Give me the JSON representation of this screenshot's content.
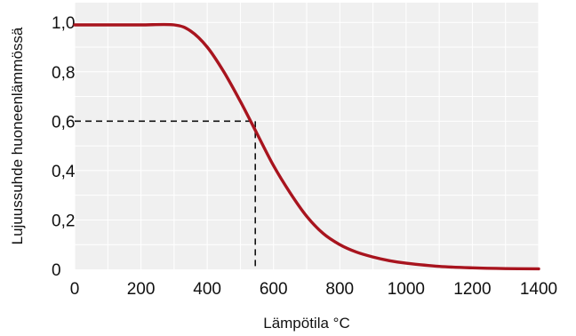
{
  "chart_data": {
    "type": "line",
    "title": "",
    "xlabel": "Lämpötila °C",
    "ylabel": "Lujuussuhde huoneenlämmössä",
    "xlim": [
      0,
      1400
    ],
    "ylim": [
      0,
      1.08
    ],
    "xticks": [
      0,
      200,
      400,
      600,
      800,
      1000,
      1200,
      1400
    ],
    "xtick_labels": [
      "0",
      "200",
      "400",
      "600",
      "800",
      "1000",
      "1200",
      "1400"
    ],
    "yticks": [
      0,
      0.2,
      0.4,
      0.6,
      0.8,
      1.0
    ],
    "ytick_labels": [
      "0",
      "0,2",
      "0,4",
      "0,6",
      "0,8",
      "1,0"
    ],
    "grid": true,
    "background": "#f0f0f0",
    "grid_color": "#ffffff",
    "series": [
      {
        "color": "#a8141e",
        "x": [
          0,
          100,
          200,
          300,
          350,
          400,
          450,
          500,
          550,
          600,
          650,
          700,
          750,
          800,
          850,
          900,
          950,
          1000,
          1100,
          1200,
          1300,
          1400
        ],
        "y": [
          0.99,
          0.99,
          0.99,
          0.99,
          0.965,
          0.9,
          0.8,
          0.68,
          0.55,
          0.42,
          0.31,
          0.215,
          0.145,
          0.1,
          0.07,
          0.05,
          0.035,
          0.025,
          0.012,
          0.006,
          0.003,
          0.002
        ]
      }
    ],
    "reference_point": {
      "x": 545,
      "y": 0.6,
      "style": "dashed",
      "color": "#111111"
    }
  }
}
